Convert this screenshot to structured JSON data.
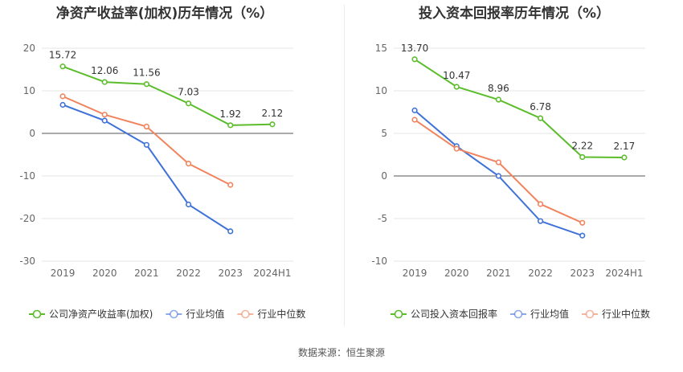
{
  "source_note": "数据来源：恒生聚源",
  "chart_data": [
    {
      "type": "line",
      "title": "净资产收益率(加权)历年情况（%）",
      "categories": [
        "2019",
        "2020",
        "2021",
        "2022",
        "2023",
        "2024H1"
      ],
      "ylim": [
        -30,
        20
      ],
      "yticks": [
        20,
        10,
        0,
        -10,
        -20,
        -30
      ],
      "grid": true,
      "legend": "bottom-left",
      "series": [
        {
          "name": "公司净资产收益率(加权)",
          "color": "#5cbd2c",
          "values": [
            15.72,
            12.06,
            11.56,
            7.03,
            1.92,
            2.12
          ],
          "labels": [
            "15.72",
            "12.06",
            "11.56",
            "7.03",
            "1.92",
            "2.12"
          ]
        },
        {
          "name": "行业均值",
          "color": "#3f72d8",
          "values": [
            6.7,
            3.0,
            -2.7,
            -16.7,
            -23.0,
            null
          ]
        },
        {
          "name": "行业中位数",
          "color": "#f0845f",
          "values": [
            8.7,
            4.4,
            1.6,
            -7.1,
            -12.1,
            null
          ]
        }
      ]
    },
    {
      "type": "line",
      "title": "投入资本回报率历年情况（%）",
      "categories": [
        "2019",
        "2020",
        "2021",
        "2022",
        "2023",
        "2024H1"
      ],
      "ylim": [
        -10,
        15
      ],
      "yticks": [
        15,
        10,
        5,
        0,
        -5,
        -10
      ],
      "grid": true,
      "legend": "bottom-left",
      "series": [
        {
          "name": "公司投入资本回报率",
          "color": "#5cbd2c",
          "values": [
            13.7,
            10.47,
            8.96,
            6.78,
            2.22,
            2.17
          ],
          "labels": [
            "13.70",
            "10.47",
            "8.96",
            "6.78",
            "2.22",
            "2.17"
          ]
        },
        {
          "name": "行业均值",
          "color": "#3f72d8",
          "values": [
            7.7,
            3.5,
            0.0,
            -5.3,
            -7.0,
            null
          ]
        },
        {
          "name": "行业中位数",
          "color": "#f0845f",
          "values": [
            6.6,
            3.2,
            1.6,
            -3.3,
            -5.5,
            null
          ]
        }
      ]
    }
  ]
}
